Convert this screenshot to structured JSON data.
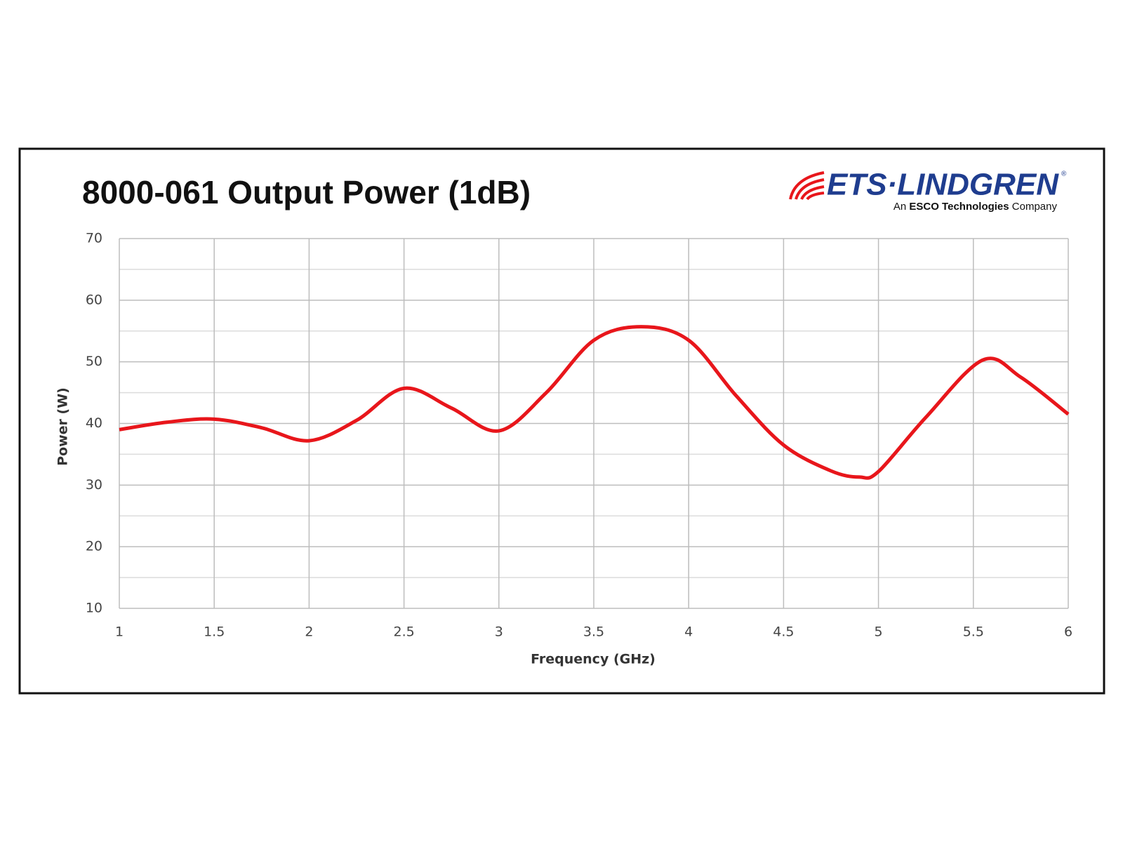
{
  "chart_data": {
    "type": "line",
    "title": "8000-061 Output Power (1dB)",
    "x_label": "Frequency (GHz)",
    "y_label": "Power (W)",
    "xlim": [
      1,
      6
    ],
    "xticks": [
      1,
      1.5,
      2,
      2.5,
      3,
      3.5,
      4,
      4.5,
      5,
      5.5,
      6
    ],
    "ylim": [
      10,
      70
    ],
    "yticks": [
      10,
      20,
      30,
      40,
      50,
      60,
      70
    ],
    "y_minor_gridlines": [
      15,
      25,
      35,
      45,
      55,
      65
    ],
    "grid": true,
    "series": [
      {
        "color": "#e8161b",
        "x": [
          1,
          1.25,
          1.5,
          1.75,
          2,
          2.25,
          2.5,
          2.75,
          3,
          3.25,
          3.5,
          3.75,
          4,
          4.25,
          4.5,
          4.75,
          4.9,
          5,
          5.25,
          5.55,
          5.75,
          6
        ],
        "values": [
          39,
          40.2,
          40.7,
          39.3,
          37.2,
          40.5,
          45.7,
          42.5,
          38.8,
          45,
          53.5,
          55.7,
          53.5,
          44.5,
          36.5,
          32.3,
          31.3,
          32.2,
          41,
          50.3,
          47.5,
          41.5
        ]
      }
    ]
  },
  "logo": {
    "name": "ETS·LINDGREN",
    "mark": "®",
    "tagline_start": "An ",
    "tagline_bold": "ESCO Technologies",
    "tagline_end": " Company"
  }
}
